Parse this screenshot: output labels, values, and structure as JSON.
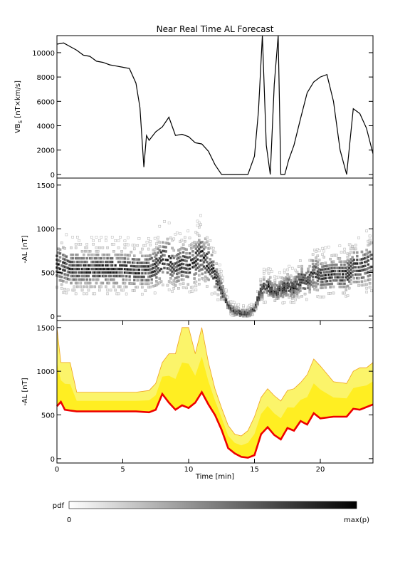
{
  "title": "Near Real Time AL Forecast",
  "colorbar": {
    "label": "pdf",
    "min_label": "0",
    "max_label": "max(p)"
  },
  "chart_data": [
    {
      "type": "line",
      "panel": "top",
      "ylabel": "VBs [nT×km/s]",
      "ylabel_main": "VB",
      "ylabel_sub": "S",
      "ylabel_rest": " [nT×km/s]",
      "xlim": [
        0,
        24
      ],
      "ylim": [
        -300,
        11400
      ],
      "yticks": [
        0,
        2000,
        4000,
        6000,
        8000,
        10000
      ],
      "x": [
        0,
        0.5,
        1,
        1.5,
        2,
        2.5,
        3,
        3.5,
        4,
        4.5,
        5,
        5.5,
        6,
        6.3,
        6.6,
        6.8,
        7,
        7.5,
        8,
        8.5,
        9,
        9.5,
        10,
        10.5,
        11,
        11.5,
        12,
        12.5,
        13,
        13.5,
        14,
        14.5,
        15,
        15.3,
        15.6,
        15.9,
        16.2,
        16.5,
        16.8,
        17,
        17.3,
        17.6,
        18,
        18.5,
        19,
        19.5,
        20,
        20.5,
        21,
        21.5,
        22,
        22.5,
        23,
        23.5,
        24
      ],
      "y": [
        10700,
        10800,
        10500,
        10200,
        9800,
        9700,
        9300,
        9200,
        9000,
        8900,
        8800,
        8700,
        7500,
        5500,
        600,
        3200,
        2800,
        3500,
        3900,
        4700,
        3200,
        3300,
        3100,
        2600,
        2500,
        1900,
        800,
        0,
        0,
        0,
        0,
        0,
        1500,
        5200,
        11400,
        2400,
        0,
        7400,
        11400,
        0,
        0,
        1200,
        2400,
        4600,
        6700,
        7600,
        8000,
        8200,
        6000,
        2000,
        0,
        5400,
        5000,
        3800,
        1700
      ]
    },
    {
      "type": "heatmap",
      "panel": "middle",
      "ylabel": "-AL [nT]",
      "xlim": [
        0,
        24
      ],
      "ylim": [
        -50,
        1580
      ],
      "yticks": [
        0,
        500,
        1000,
        1500
      ],
      "description_of_values": "probability density of -AL per time, median track",
      "median_x": [
        0,
        1,
        2,
        3,
        4,
        5,
        6,
        7,
        7.5,
        8,
        8.5,
        9,
        9.5,
        10,
        10.5,
        11,
        11.5,
        12,
        12.5,
        13,
        13.5,
        14,
        14.5,
        15,
        15.5,
        16,
        16.5,
        17,
        17.5,
        18,
        18.5,
        19,
        19.5,
        20,
        21,
        22,
        22.5,
        23,
        23.5,
        24
      ],
      "median_y": [
        600,
        540,
        540,
        540,
        540,
        540,
        530,
        530,
        560,
        650,
        640,
        560,
        600,
        580,
        620,
        700,
        600,
        480,
        300,
        120,
        60,
        30,
        30,
        80,
        300,
        350,
        280,
        300,
        350,
        320,
        420,
        400,
        500,
        460,
        480,
        480,
        560,
        560,
        580,
        620
      ]
    },
    {
      "type": "area",
      "panel": "bottom",
      "ylabel": "-AL [nT]",
      "xlabel": "Time [min]",
      "xlim": [
        0,
        24
      ],
      "ylim": [
        -50,
        1580
      ],
      "xticks": [
        0,
        5,
        10,
        15,
        20
      ],
      "yticks": [
        0,
        500,
        1000,
        1500
      ],
      "x": [
        0,
        0.3,
        0.6,
        1,
        1.5,
        2,
        2.5,
        3,
        4,
        5,
        6,
        7,
        7.5,
        8,
        8.5,
        9,
        9.5,
        10,
        10.5,
        11,
        11.5,
        12,
        12.5,
        13,
        13.5,
        14,
        14.5,
        15,
        15.5,
        16,
        16.5,
        17,
        17.5,
        18,
        18.5,
        19,
        19.5,
        20,
        21,
        22,
        22.5,
        23,
        23.5,
        24
      ],
      "series": [
        {
          "name": "",
          "color": "#ee0000",
          "values": [
            600,
            650,
            560,
            550,
            540,
            540,
            540,
            540,
            540,
            540,
            540,
            530,
            560,
            740,
            640,
            560,
            610,
            580,
            640,
            760,
            620,
            500,
            330,
            120,
            60,
            20,
            10,
            40,
            280,
            360,
            270,
            220,
            350,
            320,
            430,
            390,
            520,
            460,
            480,
            480,
            570,
            560,
            590,
            620
          ]
        },
        {
          "name": "",
          "color": "#ffee22",
          "values": [
            1500,
            1100,
            1100,
            1100,
            760,
            760,
            760,
            760,
            760,
            760,
            760,
            780,
            860,
            1100,
            1200,
            1200,
            1500,
            1500,
            1200,
            1500,
            1100,
            800,
            580,
            380,
            280,
            260,
            320,
            480,
            700,
            800,
            720,
            660,
            780,
            800,
            870,
            960,
            1140,
            1060,
            880,
            860,
            1000,
            1040,
            1040,
            1100
          ]
        }
      ]
    }
  ]
}
